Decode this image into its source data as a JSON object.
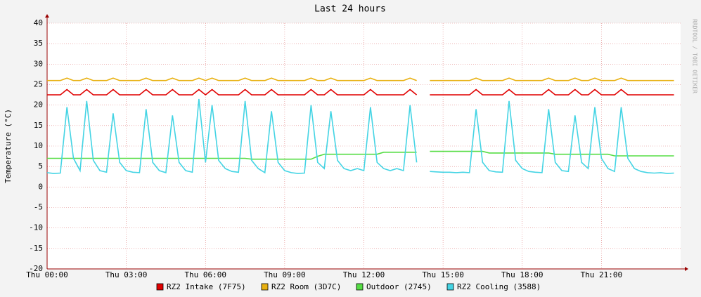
{
  "chart_data": {
    "type": "line",
    "title": "Last 24 hours",
    "ylabel": "Temperature (°C)",
    "watermark": "RRDTOOL / TOBI OETIKER",
    "grid": true,
    "xlim": [
      0,
      24
    ],
    "xticks": [
      {
        "value": 0,
        "label": "Thu 00:00"
      },
      {
        "value": 3,
        "label": "Thu 03:00"
      },
      {
        "value": 6,
        "label": "Thu 06:00"
      },
      {
        "value": 9,
        "label": "Thu 09:00"
      },
      {
        "value": 12,
        "label": "Thu 12:00"
      },
      {
        "value": 15,
        "label": "Thu 15:00"
      },
      {
        "value": 18,
        "label": "Thu 18:00"
      },
      {
        "value": 21,
        "label": "Thu 21:00"
      }
    ],
    "ylim": [
      -20,
      40
    ],
    "yticks": [
      -20,
      -15,
      -10,
      -5,
      0,
      5,
      10,
      15,
      20,
      25,
      30,
      35,
      40
    ],
    "x": [
      0,
      0.25,
      0.5,
      0.75,
      1,
      1.25,
      1.5,
      1.75,
      2,
      2.25,
      2.5,
      2.75,
      3,
      3.25,
      3.5,
      3.75,
      4,
      4.25,
      4.5,
      4.75,
      5,
      5.25,
      5.5,
      5.75,
      6,
      6.25,
      6.5,
      6.75,
      7,
      7.25,
      7.5,
      7.75,
      8,
      8.25,
      8.5,
      8.75,
      9,
      9.25,
      9.5,
      9.75,
      10,
      10.25,
      10.5,
      10.75,
      11,
      11.25,
      11.5,
      11.75,
      12,
      12.25,
      12.5,
      12.75,
      13,
      13.25,
      13.5,
      13.75,
      14,
      14.25,
      14.5,
      14.75,
      15,
      15.25,
      15.5,
      15.75,
      16,
      16.25,
      16.5,
      16.75,
      17,
      17.25,
      17.5,
      17.75,
      18,
      18.25,
      18.5,
      18.75,
      19,
      19.25,
      19.5,
      19.75,
      20,
      20.25,
      20.5,
      20.75,
      21,
      21.25,
      21.5,
      21.75,
      22,
      22.25,
      22.5,
      22.75,
      23,
      23.25,
      23.5,
      23.75,
      24
    ],
    "series": [
      {
        "name": "RZ2 Intake (7F75)",
        "color": "#e00000",
        "values": [
          22.5,
          22.5,
          22.5,
          23.8,
          22.5,
          22.5,
          23.8,
          22.5,
          22.5,
          22.5,
          23.8,
          22.5,
          22.5,
          22.5,
          22.5,
          23.8,
          22.5,
          22.5,
          22.5,
          23.8,
          22.5,
          22.5,
          22.5,
          23.8,
          22.5,
          23.8,
          22.5,
          22.5,
          22.5,
          22.5,
          23.8,
          22.5,
          22.5,
          22.5,
          23.8,
          22.5,
          22.5,
          22.5,
          22.5,
          22.5,
          23.8,
          22.5,
          22.5,
          23.8,
          22.5,
          22.5,
          22.5,
          22.5,
          22.5,
          23.8,
          22.5,
          22.5,
          22.5,
          22.5,
          22.5,
          23.8,
          22.5,
          null,
          22.5,
          22.5,
          22.5,
          22.5,
          22.5,
          22.5,
          22.5,
          23.8,
          22.5,
          22.5,
          22.5,
          22.5,
          23.8,
          22.5,
          22.5,
          22.5,
          22.5,
          22.5,
          23.8,
          22.5,
          22.5,
          22.5,
          23.8,
          22.5,
          22.5,
          23.8,
          22.5,
          22.5,
          22.5,
          23.8,
          22.5,
          22.5,
          22.5,
          22.5,
          22.5,
          22.5,
          22.5,
          22.5,
          null
        ]
      },
      {
        "name": "RZ2 Room (3D7C)",
        "color": "#e8b010",
        "values": [
          26,
          26,
          26,
          26.6,
          26,
          26,
          26.6,
          26,
          26,
          26,
          26.6,
          26,
          26,
          26,
          26,
          26.6,
          26,
          26,
          26,
          26.6,
          26,
          26,
          26,
          26.6,
          26,
          26.6,
          26,
          26,
          26,
          26,
          26.6,
          26,
          26,
          26,
          26.6,
          26,
          26,
          26,
          26,
          26,
          26.6,
          26,
          26,
          26.6,
          26,
          26,
          26,
          26,
          26,
          26.6,
          26,
          26,
          26,
          26,
          26,
          26.6,
          26,
          null,
          26,
          26,
          26,
          26,
          26,
          26,
          26,
          26.6,
          26,
          26,
          26,
          26,
          26.6,
          26,
          26,
          26,
          26,
          26,
          26.6,
          26,
          26,
          26,
          26.6,
          26,
          26,
          26.6,
          26,
          26,
          26,
          26.6,
          26,
          26,
          26,
          26,
          26,
          26,
          26,
          26,
          null
        ]
      },
      {
        "name": "Outdoor (2745)",
        "color": "#55dd44",
        "values": [
          7,
          7,
          7,
          7,
          7,
          7,
          7,
          7,
          7,
          7,
          7,
          7,
          7,
          7,
          7,
          7,
          7,
          7,
          7,
          7,
          7,
          7,
          7,
          7,
          7,
          7,
          7,
          7,
          7,
          7,
          7,
          6.8,
          6.8,
          6.8,
          6.8,
          6.8,
          6.8,
          6.8,
          6.8,
          6.8,
          6.8,
          7.5,
          8,
          8,
          8,
          8,
          8,
          8,
          8,
          8,
          8,
          8.5,
          8.5,
          8.5,
          8.5,
          8.5,
          8.5,
          null,
          8.7,
          8.7,
          8.7,
          8.7,
          8.7,
          8.7,
          8.7,
          8.7,
          8.7,
          8.3,
          8.3,
          8.3,
          8.3,
          8.3,
          8.3,
          8.3,
          8.3,
          8.3,
          8.3,
          8,
          8,
          8,
          8,
          8,
          8,
          8,
          8,
          8,
          7.6,
          7.6,
          7.6,
          7.6,
          7.6,
          7.6,
          7.6,
          7.6,
          7.6,
          7.6,
          null
        ]
      },
      {
        "name": "RZ2 Cooling (3588)",
        "color": "#44d4e4",
        "values": [
          3.5,
          3.3,
          3.4,
          19.5,
          7,
          4,
          21,
          6.5,
          4,
          3.6,
          18,
          6,
          4,
          3.6,
          3.5,
          19,
          6,
          4,
          3.5,
          17.5,
          6,
          4,
          3.6,
          21.5,
          6,
          20,
          6.5,
          4.5,
          3.8,
          3.6,
          21,
          6.5,
          4.5,
          3.5,
          18.5,
          6,
          4,
          3.5,
          3.3,
          3.4,
          20,
          6,
          4.5,
          18.5,
          6.5,
          4.5,
          4,
          4.5,
          4,
          19.5,
          6,
          4.5,
          4,
          4.5,
          4,
          20,
          6,
          null,
          3.8,
          3.7,
          3.6,
          3.6,
          3.5,
          3.6,
          3.5,
          19,
          6,
          4,
          3.7,
          3.6,
          21,
          6.5,
          4.5,
          3.8,
          3.6,
          3.5,
          19,
          6,
          4,
          3.8,
          17.5,
          6,
          4.5,
          19.5,
          7,
          4.5,
          3.8,
          19.5,
          7,
          4.5,
          3.8,
          3.5,
          3.4,
          3.5,
          3.3,
          3.4,
          null
        ]
      }
    ]
  }
}
